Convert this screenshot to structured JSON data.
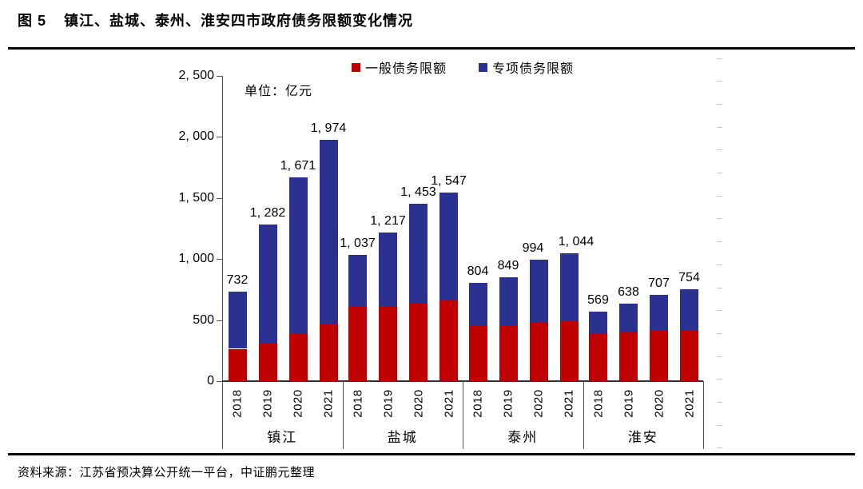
{
  "figure": {
    "label": "图 5",
    "title": "镇江、盐城、泰州、淮安四市政府债务限额变化情况"
  },
  "chart": {
    "unit_label": "单位：亿元",
    "legend": [
      {
        "label": "一般债务限额",
        "color": "#C00000"
      },
      {
        "label": "专项债务限额",
        "color": "#2A3190"
      }
    ]
  },
  "source": "资料来源：江苏省预决算公开统一平台，中证鹏元整理",
  "chart_data": {
    "type": "bar",
    "stacked": true,
    "title": "镇江、盐城、泰州、淮安四市政府债务限额变化情况",
    "unit": "亿元",
    "ylim": [
      0,
      2500
    ],
    "ytick_values": [
      0,
      500,
      1000,
      1500,
      2000,
      2500
    ],
    "ytick_labels": [
      "0",
      "500",
      "1, 000",
      "1, 500",
      "2, 000",
      "2, 500"
    ],
    "grid": false,
    "legend_position": "top",
    "groups": [
      "镇江",
      "盐城",
      "泰州",
      "淮安"
    ],
    "years": [
      "2018",
      "2019",
      "2020",
      "2021"
    ],
    "series": [
      {
        "name": "一般债务限额",
        "color": "#C00000",
        "values": [
          265,
          308,
          393,
          465,
          608,
          615,
          640,
          660,
          450,
          452,
          483,
          490,
          395,
          405,
          415,
          415
        ]
      },
      {
        "name": "专项债务限额",
        "color": "#2A3190",
        "values": [
          467,
          974,
          1278,
          1509,
          429,
          602,
          813,
          887,
          354,
          397,
          511,
          554,
          174,
          233,
          292,
          339
        ]
      }
    ],
    "totals": [
      732,
      1282,
      1671,
      1974,
      1037,
      1217,
      1453,
      1547,
      804,
      849,
      994,
      1044,
      569,
      638,
      707,
      754
    ],
    "total_labels": [
      "732",
      "1, 282",
      "1, 671",
      "1, 974",
      "1, 037",
      "1, 217",
      "1, 453",
      "1, 547",
      "804",
      "849",
      "994",
      "1, 044",
      "569",
      "638",
      "707",
      "754"
    ]
  }
}
